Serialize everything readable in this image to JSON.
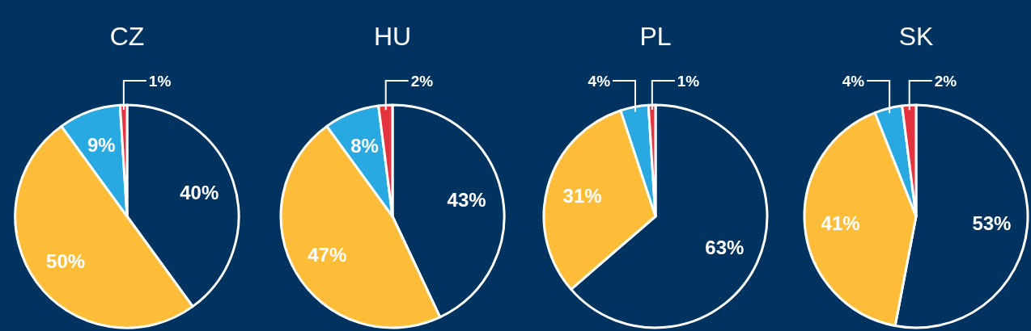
{
  "chart_data": [
    {
      "type": "pie",
      "title": "CZ",
      "categories": [
        null,
        null,
        null,
        null
      ],
      "values": [
        40,
        50,
        9,
        1
      ],
      "value_labels": [
        "40%",
        "50%",
        "9%",
        "1%"
      ],
      "colors": [
        "#00335f",
        "#fdbd39",
        "#29a9e1",
        "#e5323f"
      ]
    },
    {
      "type": "pie",
      "title": "HU",
      "categories": [
        null,
        null,
        null,
        null
      ],
      "values": [
        43,
        47,
        8,
        2
      ],
      "value_labels": [
        "43%",
        "47%",
        "8%",
        "2%"
      ],
      "colors": [
        "#00335f",
        "#fdbd39",
        "#29a9e1",
        "#e5323f"
      ]
    },
    {
      "type": "pie",
      "title": "PL",
      "categories": [
        null,
        null,
        null,
        null
      ],
      "values": [
        63,
        31,
        4,
        1
      ],
      "value_labels": [
        "63%",
        "31%",
        "4%",
        "1%"
      ],
      "colors": [
        "#00335f",
        "#fdbd39",
        "#29a9e1",
        "#e5323f"
      ]
    },
    {
      "type": "pie",
      "title": "SK",
      "categories": [
        null,
        null,
        null,
        null
      ],
      "values": [
        53,
        41,
        4,
        2
      ],
      "value_labels": [
        "53%",
        "41%",
        "4%",
        "2%"
      ],
      "colors": [
        "#00335f",
        "#fdbd39",
        "#29a9e1",
        "#e5323f"
      ]
    }
  ]
}
